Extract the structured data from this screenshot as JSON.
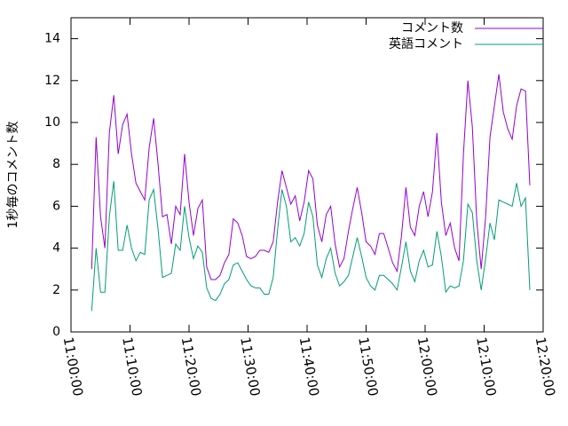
{
  "chart_data": {
    "type": "line",
    "y_label": "1秒毎のコメント数",
    "x": [
      "11:03:30",
      "11:04:15",
      "11:05:00",
      "11:05:45",
      "11:06:30",
      "11:07:15",
      "11:08:00",
      "11:08:45",
      "11:09:30",
      "11:10:15",
      "11:11:00",
      "11:11:45",
      "11:12:30",
      "11:13:15",
      "11:14:00",
      "11:14:45",
      "11:15:30",
      "11:16:15",
      "11:17:00",
      "11:17:45",
      "11:18:30",
      "11:19:15",
      "11:20:00",
      "11:20:45",
      "11:21:30",
      "11:22:15",
      "11:23:00",
      "11:23:45",
      "11:24:30",
      "11:25:15",
      "11:26:00",
      "11:26:45",
      "11:27:30",
      "11:28:15",
      "11:29:00",
      "11:29:45",
      "11:30:30",
      "11:31:15",
      "11:32:00",
      "11:32:45",
      "11:33:30",
      "11:34:15",
      "11:35:00",
      "11:35:45",
      "11:36:30",
      "11:37:15",
      "11:38:00",
      "11:38:45",
      "11:39:30",
      "11:40:15",
      "11:41:00",
      "11:41:45",
      "11:42:30",
      "11:43:15",
      "11:44:00",
      "11:44:45",
      "11:45:30",
      "11:46:15",
      "11:47:00",
      "11:47:45",
      "11:48:30",
      "11:49:15",
      "11:50:00",
      "11:50:45",
      "11:51:30",
      "11:52:15",
      "11:53:00",
      "11:53:45",
      "11:54:30",
      "11:55:15",
      "11:56:00",
      "11:56:45",
      "11:57:30",
      "11:58:15",
      "11:59:00",
      "11:59:45",
      "12:00:30",
      "12:01:15",
      "12:02:00",
      "12:02:45",
      "12:03:30",
      "12:04:15",
      "12:05:00",
      "12:05:45",
      "12:06:30",
      "12:07:15",
      "12:08:00",
      "12:08:45",
      "12:09:30",
      "12:10:15",
      "12:11:00",
      "12:11:45",
      "12:12:30",
      "12:13:15",
      "12:14:00",
      "12:14:45",
      "12:15:30",
      "12:16:15",
      "12:17:00",
      "12:17:45"
    ],
    "series": [
      {
        "name": "コメント数",
        "color": "#9400d3",
        "values": [
          3,
          9.3,
          5.5,
          4.0,
          9.5,
          11.3,
          8.5,
          9.9,
          10.4,
          8.5,
          7.1,
          6.7,
          6.3,
          8.8,
          10.2,
          8.0,
          5.5,
          5.6,
          4.2,
          6.0,
          5.6,
          8.5,
          6.2,
          4.6,
          5.9,
          6.3,
          3.1,
          2.5,
          2.5,
          2.7,
          3.3,
          3.7,
          5.4,
          5.2,
          4.6,
          3.6,
          3.5,
          3.6,
          3.9,
          3.9,
          3.8,
          4.3,
          6.2,
          7.7,
          6.9,
          6.1,
          6.5,
          5.3,
          6.2,
          7.7,
          7.3,
          5.1,
          4.3,
          5.6,
          6.0,
          4.2,
          3.1,
          3.5,
          4.8,
          5.9,
          6.9,
          5.7,
          4.3,
          4.1,
          3.7,
          4.7,
          4.7,
          4.0,
          3.3,
          2.9,
          4.6,
          6.9,
          5.0,
          4.6,
          6.0,
          6.7,
          5.5,
          6.7,
          9.5,
          6.2,
          4.6,
          5.2,
          4.0,
          3.4,
          8.5,
          12,
          9.8,
          5.3,
          3.0,
          5.5,
          9.3,
          10.8,
          12.3,
          10.5,
          9.7,
          9.2,
          10.8,
          11.6,
          11.5,
          7.0
        ]
      },
      {
        "name": "英語コメント",
        "color": "#009e73",
        "values": [
          1.0,
          4.0,
          1.9,
          1.9,
          5.5,
          7.2,
          3.9,
          3.9,
          5.1,
          4.0,
          3.4,
          3.8,
          3.7,
          6.3,
          6.8,
          4.9,
          2.6,
          2.7,
          2.8,
          4.2,
          3.9,
          6.0,
          4.5,
          3.5,
          4.1,
          3.8,
          2.1,
          1.6,
          1.5,
          1.8,
          2.3,
          2.5,
          3.2,
          3.3,
          2.9,
          2.5,
          2.2,
          2.1,
          2.1,
          1.8,
          1.8,
          2.6,
          4.9,
          6.8,
          6.0,
          4.3,
          4.5,
          4.1,
          4.7,
          6.2,
          5.5,
          3.2,
          2.6,
          3.5,
          4.0,
          2.8,
          2.2,
          2.4,
          2.7,
          3.6,
          4.5,
          3.6,
          2.6,
          2.2,
          2.0,
          2.7,
          2.7,
          2.5,
          2.3,
          2.0,
          3.1,
          4.3,
          2.9,
          2.4,
          3.4,
          3.9,
          3.1,
          3.2,
          4.8,
          3.6,
          1.9,
          2.2,
          2.1,
          2.2,
          3.4,
          6.1,
          5.7,
          3.4,
          2.0,
          3.5,
          5.2,
          4.4,
          6.3,
          6.2,
          6.1,
          6.0,
          7.1,
          6.0,
          6.4,
          2.0
        ]
      }
    ],
    "xlim": [
      "11:00:00",
      "12:20:00"
    ],
    "xticks": [
      "11:00:00",
      "11:10:00",
      "11:20:00",
      "11:30:00",
      "11:40:00",
      "11:50:00",
      "12:00:00",
      "12:10:00",
      "12:20:00"
    ],
    "ylim": [
      0,
      15
    ],
    "yticks": [
      0,
      2,
      4,
      6,
      8,
      10,
      12,
      14
    ],
    "legend": "top right",
    "grid": false
  }
}
